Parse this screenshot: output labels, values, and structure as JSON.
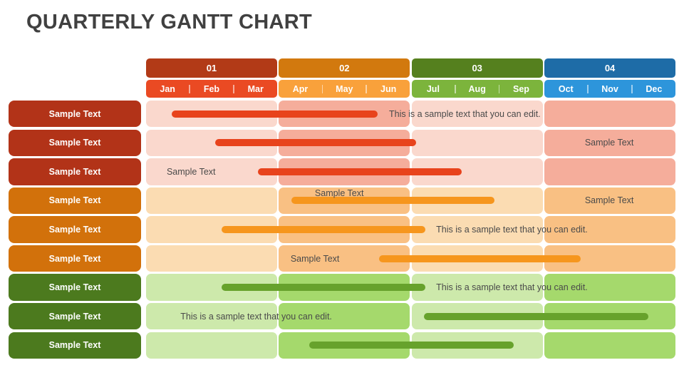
{
  "title": "QUARTERLY GANTT CHART",
  "colors": {
    "title_text": "#404040",
    "body_text": "#4a4a4a",
    "background": "#ffffff"
  },
  "quarters": [
    {
      "id": "01",
      "months": [
        "Jan",
        "Feb",
        "Mar"
      ],
      "header_bg": "#B23A17",
      "month_bg": "#EA4A23"
    },
    {
      "id": "02",
      "months": [
        "Apr",
        "May",
        "Jun"
      ],
      "header_bg": "#D2790E",
      "month_bg": "#F9A13B"
    },
    {
      "id": "03",
      "months": [
        "Jul",
        "Aug",
        "Sep"
      ],
      "header_bg": "#55801E",
      "month_bg": "#7CB43C"
    },
    {
      "id": "04",
      "months": [
        "Oct",
        "Nov",
        "Dec"
      ],
      "header_bg": "#1E6CA7",
      "month_bg": "#2D95DB"
    }
  ],
  "palette": {
    "red": {
      "label_bg": "#B23318",
      "bar": "#E8431C",
      "cell_light": "#FAD8CD",
      "cell_dark": "#F5AD9B"
    },
    "orange": {
      "label_bg": "#D2710B",
      "bar": "#F6961D",
      "cell_light": "#FBDCB2",
      "cell_dark": "#F9C083"
    },
    "green": {
      "label_bg": "#4C7A1E",
      "bar": "#67A22C",
      "cell_light": "#CDE9AB",
      "cell_dark": "#A5D96C"
    }
  },
  "rows": [
    {
      "label": "Sample Text",
      "theme": "red",
      "bar": {
        "start_pct": 4.8,
        "end_pct": 43.7
      },
      "texts": [
        {
          "content": "This is a sample text that you can edit.",
          "left_pct": 45.9,
          "anchor": "left"
        }
      ]
    },
    {
      "label": "Sample Text",
      "theme": "red",
      "bar": {
        "start_pct": 13.0,
        "end_pct": 51.0
      },
      "texts": [
        {
          "content": "Sample Text",
          "left_pct": 87.5,
          "anchor": "center"
        }
      ]
    },
    {
      "label": "Sample Text",
      "theme": "red",
      "bar": {
        "start_pct": 21.1,
        "end_pct": 59.6
      },
      "texts": [
        {
          "content": "Sample Text",
          "left_pct": 3.9,
          "anchor": "left"
        }
      ]
    },
    {
      "label": "Sample Text",
      "theme": "orange",
      "bar": {
        "start_pct": 27.4,
        "end_pct": 65.8
      },
      "texts": [
        {
          "content": "Sample Text",
          "left_pct": 36.5,
          "anchor": "top"
        },
        {
          "content": "Sample Text",
          "left_pct": 87.5,
          "anchor": "center"
        }
      ]
    },
    {
      "label": "Sample Text",
      "theme": "orange",
      "bar": {
        "start_pct": 14.3,
        "end_pct": 52.8
      },
      "texts": [
        {
          "content": "This is a sample text that you can edit.",
          "left_pct": 54.8,
          "anchor": "left"
        }
      ]
    },
    {
      "label": "Sample Text",
      "theme": "orange",
      "bar": {
        "start_pct": 44.0,
        "end_pct": 82.1
      },
      "texts": [
        {
          "content": "Sample Text",
          "left_pct": 27.3,
          "anchor": "left"
        }
      ]
    },
    {
      "label": "Sample Text",
      "theme": "green",
      "bar": {
        "start_pct": 14.3,
        "end_pct": 52.8
      },
      "texts": [
        {
          "content": "This is a sample text that you can edit.",
          "left_pct": 54.8,
          "anchor": "left"
        }
      ]
    },
    {
      "label": "Sample Text",
      "theme": "green",
      "bar": {
        "start_pct": 52.5,
        "end_pct": 94.9
      },
      "texts": [
        {
          "content": "This is a sample text that you can edit.",
          "left_pct": 6.5,
          "anchor": "left"
        }
      ]
    },
    {
      "label": "Sample Text",
      "theme": "green",
      "bar": {
        "start_pct": 30.8,
        "end_pct": 69.4
      },
      "texts": []
    }
  ]
}
